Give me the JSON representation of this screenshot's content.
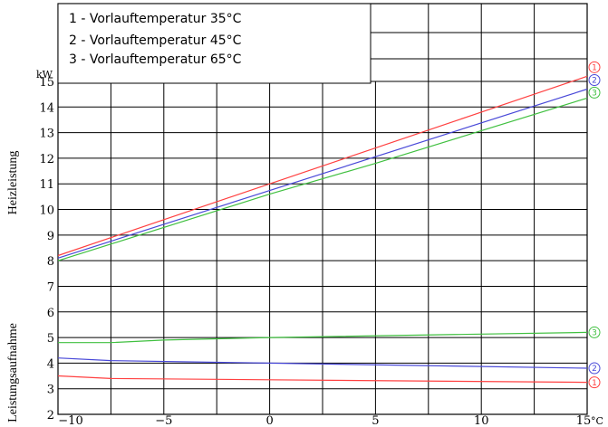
{
  "chart_data": {
    "type": "line",
    "x_unit": "°C",
    "xlim": [
      -10,
      15
    ],
    "ylim": [
      2,
      15
    ],
    "y_unit": "kW",
    "x_ticks": [
      "−10",
      "−5",
      "0",
      "5",
      "10",
      "15"
    ],
    "y_ticks": [
      "2",
      "3",
      "4",
      "5",
      "6",
      "7",
      "8",
      "9",
      "10",
      "11",
      "12",
      "13",
      "14",
      "15"
    ],
    "ylabel_top": "Heizleistung",
    "ylabel_bottom": "Leistungsaufnahme",
    "legend": [
      "1 - Vorlauftemperatur 35°C",
      "2 - Vorlauftemperatur 45°C",
      "3 - Vorlauftemperatur 65°C"
    ],
    "colors": {
      "1": "#ff4040",
      "2": "#4848d8",
      "3": "#40c040"
    },
    "series": [
      {
        "group": "Heizleistung",
        "marker": "1",
        "color": "#ff4040",
        "points": [
          [
            -10,
            8.2
          ],
          [
            15,
            15.2
          ]
        ]
      },
      {
        "group": "Heizleistung",
        "marker": "2",
        "color": "#4848d8",
        "points": [
          [
            -10,
            8.1
          ],
          [
            15,
            14.7
          ]
        ]
      },
      {
        "group": "Heizleistung",
        "marker": "3",
        "color": "#40c040",
        "points": [
          [
            -10,
            8.0
          ],
          [
            0,
            10.6
          ],
          [
            5,
            11.8
          ],
          [
            15,
            14.35
          ]
        ]
      },
      {
        "group": "Leistungsaufnahme",
        "marker": "1",
        "color": "#ff4040",
        "points": [
          [
            -10,
            3.5
          ],
          [
            -7.5,
            3.4
          ],
          [
            0,
            3.35
          ],
          [
            15,
            3.25
          ]
        ]
      },
      {
        "group": "Leistungsaufnahme",
        "marker": "2",
        "color": "#4848d8",
        "points": [
          [
            -10,
            4.2
          ],
          [
            -7.5,
            4.1
          ],
          [
            0,
            4.0
          ],
          [
            15,
            3.8
          ]
        ]
      },
      {
        "group": "Leistungsaufnahme",
        "marker": "3",
        "color": "#40c040",
        "points": [
          [
            -10,
            4.8
          ],
          [
            -7.5,
            4.8
          ],
          [
            -5,
            4.9
          ],
          [
            0,
            5.0
          ],
          [
            15,
            5.2
          ]
        ]
      }
    ],
    "markers": [
      "①",
      "②",
      "③"
    ],
    "grid": true
  }
}
